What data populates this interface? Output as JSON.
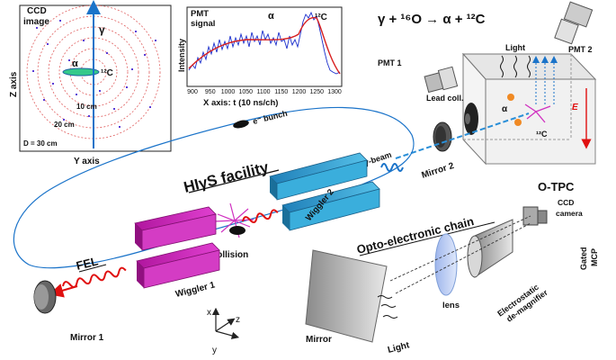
{
  "ccd": {
    "title_line1": "CCD",
    "title_line2": "image",
    "z_axis": "Z axis",
    "y_axis": "Y axis",
    "gamma": "γ",
    "alpha": "α",
    "c12": "¹²C",
    "ring_10": "10 cm",
    "ring_20": "20 cm",
    "ring_30": "D = 30 cm"
  },
  "pmt_plot": {
    "title_line1": "PMT",
    "title_line2": "signal",
    "ylabel": "Intensity",
    "xlabel": "X axis:  t (10 ns/ch)",
    "alpha": "α",
    "c12": "¹²C",
    "xticks": [
      "900",
      "950",
      "1000",
      "1050",
      "1100",
      "1150",
      "1200",
      "1250",
      "1300"
    ]
  },
  "reaction": "γ + ¹⁶O → α + ¹²C",
  "labels": {
    "pmt1": "PMT 1",
    "pmt2": "PMT 2",
    "light": "Light",
    "lead_coll": "Lead coll.",
    "alpha": "α",
    "c12": "¹²C",
    "efield": "E",
    "mirror2": "Mirror 2",
    "otpc": "O-TPC",
    "ebunch": "e⁻ bunch",
    "gamma_beam": "γ-beam",
    "facility": "HIγS facility",
    "wiggler2": "Wiggler 2",
    "collision": "Collision",
    "wiggler1": "Wiggler 1",
    "fel": "FEL",
    "mirror1": "Mirror 1",
    "axis_x": "x",
    "axis_y": "y",
    "axis_z": "z",
    "opto_chain": "Opto-electronic chain",
    "ccd_camera_line1": "CCD",
    "ccd_camera_line2": "camera",
    "gated_line1": "Gated",
    "gated_line2": "MCP",
    "electrostatic_line1": "Electrostatic",
    "electrostatic_line2": "de-magnifier",
    "lens": "lens",
    "mirror": "Mirror",
    "light2": "Light"
  },
  "colors": {
    "beam_blue": "#1a73c9",
    "wiggler_magenta": "#cc22b8",
    "wiggler_blue": "#2f9fcf",
    "laser_red": "#e01010",
    "ring_red": "#e06060"
  }
}
